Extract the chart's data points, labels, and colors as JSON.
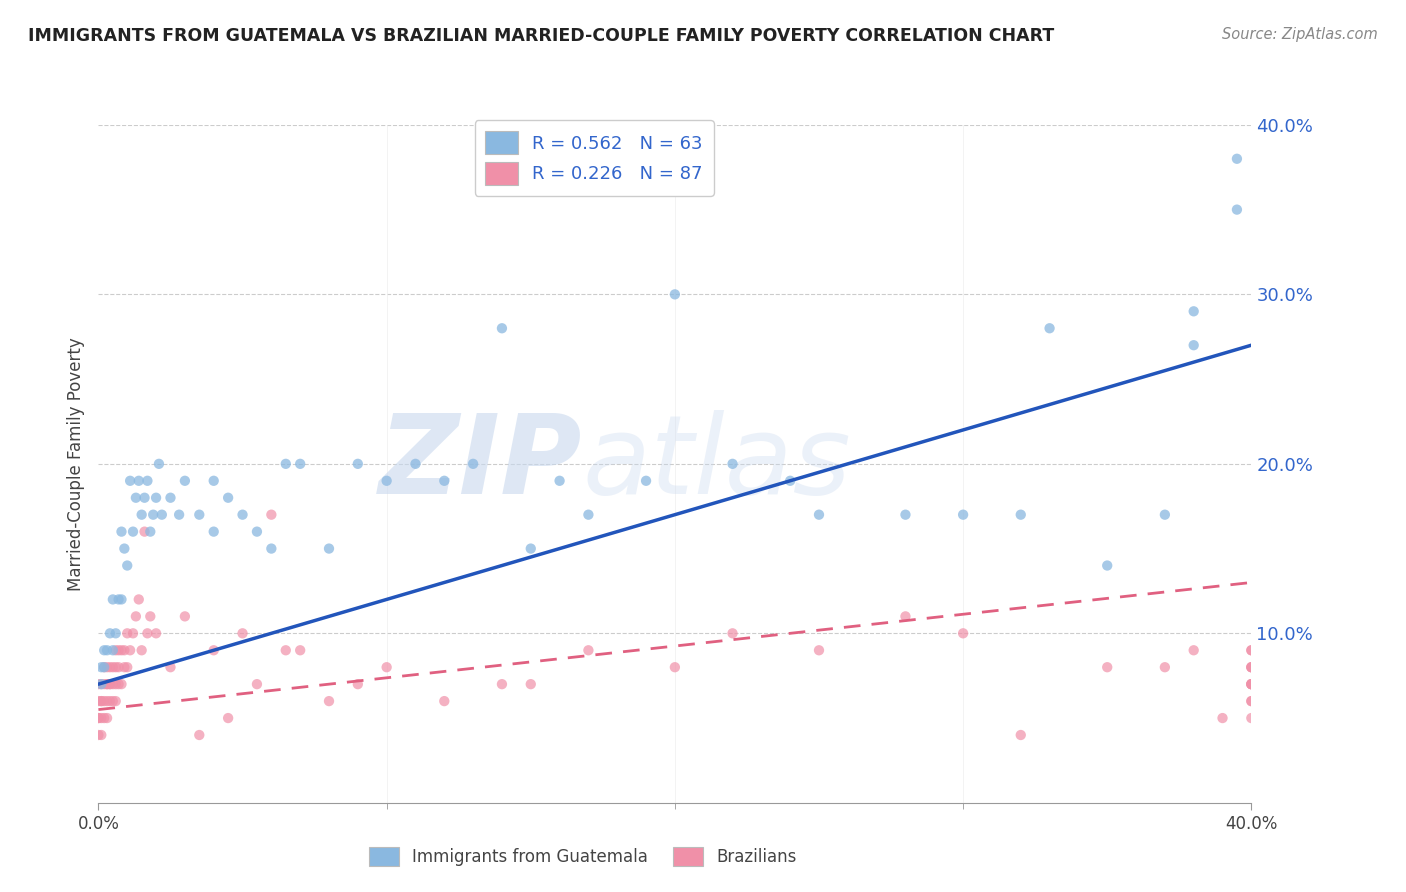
{
  "title": "IMMIGRANTS FROM GUATEMALA VS BRAZILIAN MARRIED-COUPLE FAMILY POVERTY CORRELATION CHART",
  "source": "Source: ZipAtlas.com",
  "ylabel": "Married-Couple Family Poverty",
  "legend_entries": [
    {
      "label": "R = 0.562   N = 63",
      "color": "#aec6e8"
    },
    {
      "label": "R = 0.226   N = 87",
      "color": "#f4b8c8"
    }
  ],
  "legend_bottom_labels": [
    "Immigrants from Guatemala",
    "Brazilians"
  ],
  "guatemala_color": "#8ab8e0",
  "brazil_color": "#f090a8",
  "guatemala_line_color": "#2255bb",
  "brazil_line_color": "#e06080",
  "watermark_zip": "ZIP",
  "watermark_atlas": "atlas",
  "watermark_color": "#d0dff0",
  "xmin": 0.0,
  "xmax": 0.4,
  "ymin": 0.0,
  "ymax": 0.4,
  "yticks": [
    0.1,
    0.2,
    0.3,
    0.4
  ],
  "ytick_labels": [
    "10.0%",
    "20.0%",
    "30.0%",
    "40.0%"
  ],
  "guatemala_trendline": {
    "x": [
      0.0,
      0.4
    ],
    "y": [
      0.07,
      0.27
    ]
  },
  "brazil_trendline": {
    "x": [
      0.0,
      0.4
    ],
    "y": [
      0.055,
      0.13
    ]
  },
  "guatemala_scatter_x": [
    0.001,
    0.001,
    0.002,
    0.002,
    0.003,
    0.004,
    0.005,
    0.005,
    0.006,
    0.007,
    0.008,
    0.008,
    0.009,
    0.01,
    0.011,
    0.012,
    0.013,
    0.014,
    0.015,
    0.016,
    0.017,
    0.018,
    0.019,
    0.02,
    0.021,
    0.022,
    0.025,
    0.028,
    0.03,
    0.035,
    0.04,
    0.04,
    0.045,
    0.05,
    0.055,
    0.06,
    0.065,
    0.07,
    0.08,
    0.09,
    0.1,
    0.11,
    0.12,
    0.13,
    0.15,
    0.17,
    0.2,
    0.22,
    0.25,
    0.28,
    0.3,
    0.33,
    0.35,
    0.37,
    0.38,
    0.38,
    0.395,
    0.395,
    0.14,
    0.16,
    0.19,
    0.24,
    0.32
  ],
  "guatemala_scatter_y": [
    0.07,
    0.08,
    0.08,
    0.09,
    0.09,
    0.1,
    0.09,
    0.12,
    0.1,
    0.12,
    0.12,
    0.16,
    0.15,
    0.14,
    0.19,
    0.16,
    0.18,
    0.19,
    0.17,
    0.18,
    0.19,
    0.16,
    0.17,
    0.18,
    0.2,
    0.17,
    0.18,
    0.17,
    0.19,
    0.17,
    0.16,
    0.19,
    0.18,
    0.17,
    0.16,
    0.15,
    0.2,
    0.2,
    0.15,
    0.2,
    0.19,
    0.2,
    0.19,
    0.2,
    0.15,
    0.17,
    0.3,
    0.2,
    0.17,
    0.17,
    0.17,
    0.28,
    0.14,
    0.17,
    0.27,
    0.29,
    0.35,
    0.38,
    0.28,
    0.19,
    0.19,
    0.19,
    0.17
  ],
  "brazil_scatter_x": [
    0.0,
    0.0,
    0.0,
    0.0,
    0.0,
    0.001,
    0.001,
    0.001,
    0.001,
    0.001,
    0.002,
    0.002,
    0.002,
    0.002,
    0.003,
    0.003,
    0.003,
    0.003,
    0.003,
    0.004,
    0.004,
    0.004,
    0.004,
    0.005,
    0.005,
    0.005,
    0.006,
    0.006,
    0.006,
    0.006,
    0.007,
    0.007,
    0.007,
    0.008,
    0.008,
    0.009,
    0.009,
    0.01,
    0.01,
    0.011,
    0.012,
    0.013,
    0.014,
    0.015,
    0.016,
    0.017,
    0.018,
    0.02,
    0.025,
    0.03,
    0.035,
    0.04,
    0.045,
    0.05,
    0.055,
    0.06,
    0.065,
    0.07,
    0.08,
    0.09,
    0.1,
    0.12,
    0.14,
    0.15,
    0.17,
    0.2,
    0.22,
    0.25,
    0.28,
    0.3,
    0.32,
    0.35,
    0.37,
    0.38,
    0.39,
    0.4,
    0.4,
    0.4,
    0.4,
    0.4,
    0.4,
    0.4,
    0.4,
    0.4,
    0.4,
    0.4,
    0.4
  ],
  "brazil_scatter_y": [
    0.04,
    0.05,
    0.05,
    0.06,
    0.07,
    0.04,
    0.05,
    0.06,
    0.06,
    0.07,
    0.05,
    0.06,
    0.07,
    0.08,
    0.05,
    0.06,
    0.07,
    0.07,
    0.08,
    0.06,
    0.07,
    0.07,
    0.08,
    0.06,
    0.07,
    0.08,
    0.06,
    0.07,
    0.08,
    0.09,
    0.07,
    0.08,
    0.09,
    0.07,
    0.09,
    0.08,
    0.09,
    0.08,
    0.1,
    0.09,
    0.1,
    0.11,
    0.12,
    0.09,
    0.16,
    0.1,
    0.11,
    0.1,
    0.08,
    0.11,
    0.04,
    0.09,
    0.05,
    0.1,
    0.07,
    0.17,
    0.09,
    0.09,
    0.06,
    0.07,
    0.08,
    0.06,
    0.07,
    0.07,
    0.09,
    0.08,
    0.1,
    0.09,
    0.11,
    0.1,
    0.04,
    0.08,
    0.08,
    0.09,
    0.05,
    0.07,
    0.08,
    0.07,
    0.09,
    0.08,
    0.05,
    0.06,
    0.07,
    0.08,
    0.09,
    0.07,
    0.06
  ]
}
